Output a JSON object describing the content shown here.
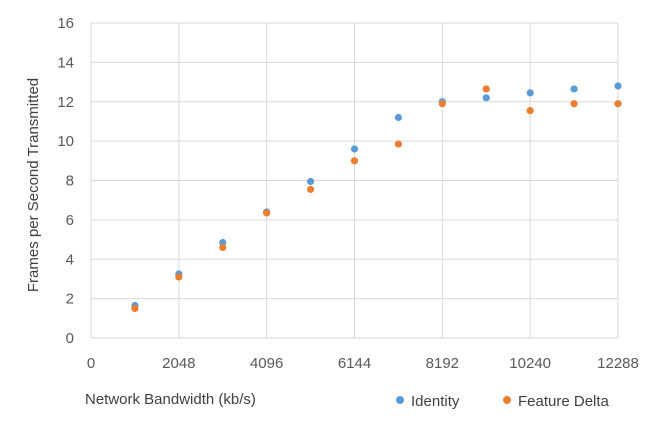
{
  "chart_data": {
    "type": "scatter",
    "xlabel": "Network Bandwidth (kb/s)",
    "ylabel": "Frames per Second Transmitted",
    "xlim": [
      0,
      12288
    ],
    "ylim": [
      0,
      16
    ],
    "x_ticks": [
      "0",
      "2048",
      "4096",
      "6144",
      "8192",
      "10240",
      "12288"
    ],
    "y_ticks": [
      "0",
      "2",
      "4",
      "6",
      "8",
      "10",
      "12",
      "14",
      "16"
    ],
    "grid": "vertical and horizontal",
    "legend_position": "bottom-right",
    "series": [
      {
        "name": "Identity",
        "color": "#5b9bd5",
        "points": [
          [
            1024,
            1.65
          ],
          [
            2048,
            3.25
          ],
          [
            3072,
            4.85
          ],
          [
            4096,
            6.4
          ],
          [
            5120,
            7.95
          ],
          [
            6144,
            9.6
          ],
          [
            7168,
            11.2
          ],
          [
            8192,
            12.0
          ],
          [
            9216,
            12.2
          ],
          [
            10240,
            12.45
          ],
          [
            11264,
            12.65
          ],
          [
            12288,
            12.8
          ]
        ]
      },
      {
        "name": "Feature Delta",
        "color": "#ed7d31",
        "points": [
          [
            1024,
            1.5
          ],
          [
            2048,
            3.1
          ],
          [
            3072,
            4.6
          ],
          [
            4096,
            6.35
          ],
          [
            5120,
            7.55
          ],
          [
            6144,
            9.0
          ],
          [
            7168,
            9.85
          ],
          [
            8192,
            11.9
          ],
          [
            9216,
            12.65
          ],
          [
            10240,
            11.55
          ],
          [
            11264,
            11.9
          ],
          [
            12288,
            11.9
          ]
        ]
      }
    ]
  }
}
